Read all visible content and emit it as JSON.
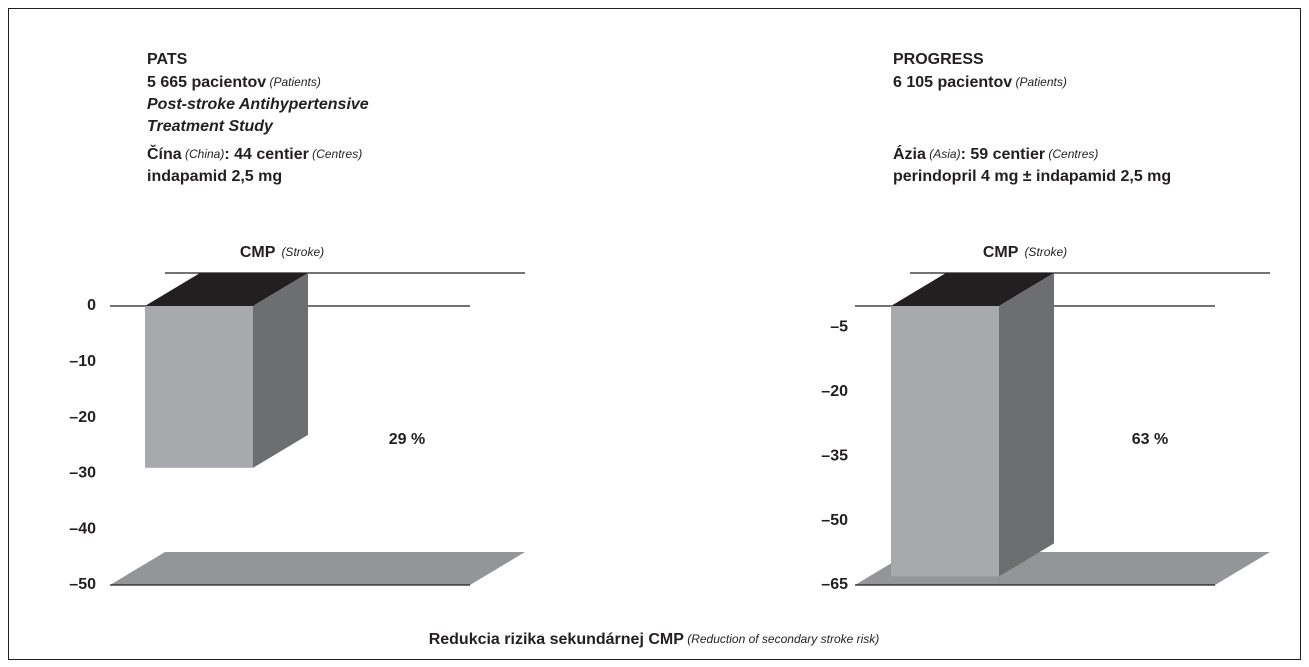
{
  "chart_data": [
    {
      "type": "bar3d",
      "title": "PATS",
      "lines": [
        [
          {
            "text": "5 665 pacientov"
          },
          {
            "text": " (Patients)",
            "small": true
          }
        ],
        [
          {
            "text": "Post-stroke Antihypertensive",
            "italic": true
          }
        ],
        [
          {
            "text": "Treatment Study",
            "italic": true
          }
        ],
        [
          {
            "text": "Čína"
          },
          {
            "text": " (China)",
            "small": true
          },
          {
            "text": ": 44 centier"
          },
          {
            "text": " (Centres)",
            "small": true
          }
        ],
        [
          {
            "text": "indapamid 2,5 mg"
          }
        ]
      ],
      "categories": [
        "CMP"
      ],
      "category_note": [
        "(Stroke)"
      ],
      "values": [
        -29
      ],
      "annotation": "29 %",
      "color": "#a7a9ac",
      "side_color": "#6d6e70",
      "top_color": "#231f20",
      "floor_color": "#939598",
      "ylim": [
        -50,
        0
      ],
      "yticks": [
        0,
        {
          "value": -10,
          "label": "–10"
        },
        {
          "value": -20,
          "label": "–20"
        },
        {
          "value": -30,
          "label": "–30"
        },
        {
          "value": -40,
          "label": "–40"
        },
        {
          "value": -50,
          "label": "–50"
        }
      ]
    },
    {
      "type": "bar3d",
      "title": "PROGRESS",
      "lines": [
        [
          {
            "text": "6 105 pacientov"
          },
          {
            "text": " (Patients)",
            "small": true
          }
        ],
        [
          {
            "text": "Ázia"
          },
          {
            "text": " (Asia)",
            "small": true
          },
          {
            "text": ": 59 centier"
          },
          {
            "text": " (Centres)",
            "small": true
          }
        ],
        [
          {
            "text": "perindopril 4 mg ± indapamid 2,5 mg"
          }
        ]
      ],
      "categories": [
        "CMP"
      ],
      "category_note": [
        "(Stroke)"
      ],
      "values": [
        -63
      ],
      "annotation": "63 %",
      "color": "#a7a9ac",
      "side_color": "#6d6e70",
      "top_color": "#231f20",
      "floor_color": "#939598",
      "ylim": [
        -65,
        0
      ],
      "yticks": [
        {
          "value": -5,
          "label": "–5"
        },
        {
          "value": -20,
          "label": "–20"
        },
        {
          "value": -35,
          "label": "–35"
        },
        {
          "value": -50,
          "label": "–50"
        },
        {
          "value": -65,
          "label": "–65"
        }
      ]
    }
  ],
  "footer": [
    {
      "text": "Redukcia rizika sekundárnej CMP"
    },
    {
      "text": " (Reduction of secondary stroke risk)",
      "small": true
    }
  ]
}
